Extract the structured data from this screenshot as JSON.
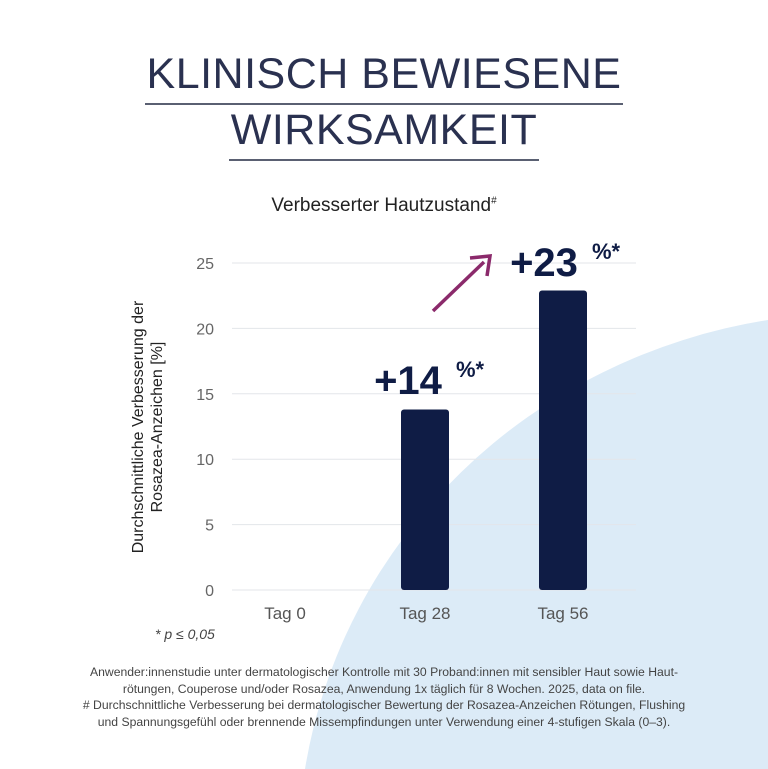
{
  "header": {
    "title_line1": "KLINISCH BEWIESENE",
    "title_line2": "WIRKSAMKEIT"
  },
  "chart_data": {
    "type": "bar",
    "title": "Verbesserter Hautzustand",
    "title_marker": "#",
    "ylabel": "Durchschnittliche Verbesserung der Rosazea-Anzeichen [%]",
    "ylabel_line1": "Durchschnittliche  Verbesserung der",
    "ylabel_line2": "Rosazea-Anzeichen [%]",
    "categories": [
      "Tag 0",
      "Tag 28",
      "Tag 56"
    ],
    "values": [
      0,
      13.8,
      22.9
    ],
    "data_labels": [
      "",
      "+14",
      "+23"
    ],
    "label_suffix": "%*",
    "yticks": [
      0,
      5,
      10,
      15,
      20,
      25
    ],
    "ylim": [
      0,
      25
    ],
    "grid": true,
    "colors": {
      "bar": "#0f1c45",
      "arrow": "#8b2a6b",
      "grid": "#e3e6ea",
      "background_shape": "#dcebf7"
    }
  },
  "notes": {
    "significance": "* p ≤ 0,05",
    "footnote_line1": "Anwender:innenstudie unter dermatologischer Kontrolle mit 30 Proband:innen mit sensibler Haut sowie Haut-",
    "footnote_line2": "rötungen, Couperose und/oder Rosazea, Anwendung 1x täglich für 8 Wochen. 2025, data on file.",
    "footnote_line3": "# Durchschnittliche Verbesserung bei dermatologischer Bewertung der Rosazea-Anzeichen Rötungen, Flushing",
    "footnote_line4": "und Spannungsgefühl oder brennende Missempfindungen unter Verwendung einer 4-stufigen Skala (0–3)."
  }
}
